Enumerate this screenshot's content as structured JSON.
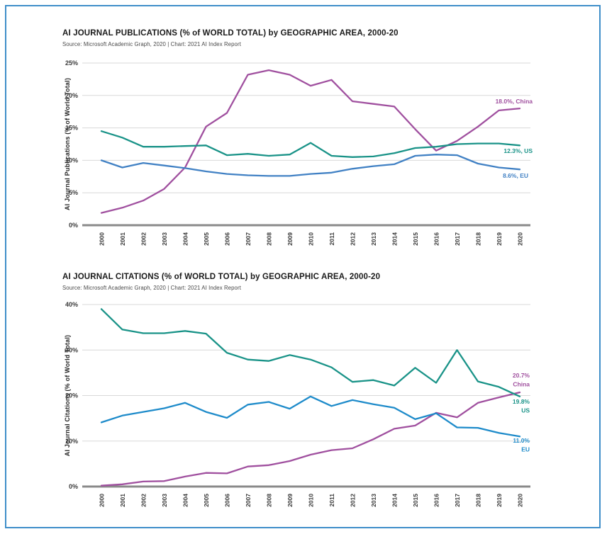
{
  "page": {
    "border_color": "#3f8ec9",
    "background": "#ffffff"
  },
  "chart_data": [
    {
      "type": "line",
      "title": "AI JOURNAL PUBLICATIONS (% of WORLD TOTAL) by GEOGRAPHIC AREA, 2000-20",
      "source": "Source: Microsoft Academic Graph, 2020 | Chart: 2021 AI Index Report",
      "xlabel": "",
      "ylabel": "AI Journal Publications (% of World Total)",
      "x": [
        2000,
        2001,
        2002,
        2003,
        2004,
        2005,
        2006,
        2007,
        2008,
        2009,
        2010,
        2011,
        2012,
        2013,
        2014,
        2015,
        2016,
        2017,
        2018,
        2019,
        2020
      ],
      "ylim": [
        0,
        25
      ],
      "yticks": [
        0,
        5,
        10,
        15,
        20,
        25
      ],
      "grid": true,
      "legend_position": "end-of-line-labels",
      "series": [
        {
          "name": "China",
          "color": "#a0509f",
          "end_label": "18.0%, China",
          "values": [
            1.9,
            2.7,
            3.8,
            5.6,
            8.9,
            15.2,
            17.3,
            23.2,
            23.9,
            23.2,
            21.5,
            22.4,
            19.1,
            18.7,
            18.3,
            14.8,
            11.5,
            13.0,
            15.2,
            17.7,
            18.0
          ]
        },
        {
          "name": "US",
          "color": "#1a9388",
          "end_label": "12.3%, US",
          "values": [
            14.5,
            13.5,
            12.1,
            12.1,
            12.2,
            12.3,
            10.8,
            11.0,
            10.7,
            10.9,
            12.7,
            10.7,
            10.5,
            10.6,
            11.1,
            11.9,
            12.1,
            12.5,
            12.6,
            12.6,
            12.3
          ]
        },
        {
          "name": "EU",
          "color": "#4181c4",
          "end_label": "8.6%, EU",
          "values": [
            10.0,
            8.9,
            9.6,
            9.2,
            8.8,
            8.3,
            7.9,
            7.7,
            7.6,
            7.6,
            7.9,
            8.1,
            8.7,
            9.1,
            9.4,
            10.7,
            10.9,
            10.8,
            9.5,
            8.9,
            8.6
          ]
        }
      ]
    },
    {
      "type": "line",
      "title": "AI JOURNAL CITATIONS (% of WORLD TOTAL) by GEOGRAPHIC AREA, 2000-20",
      "source": "Source: Microsoft Academic Graph, 2020 | Chart: 2021 AI Index Report",
      "xlabel": "",
      "ylabel": "AI Journal Citations (% of World Total)",
      "x": [
        2000,
        2001,
        2002,
        2003,
        2004,
        2005,
        2006,
        2007,
        2008,
        2009,
        2010,
        2011,
        2012,
        2013,
        2014,
        2015,
        2016,
        2017,
        2018,
        2019,
        2020
      ],
      "ylim": [
        0,
        40
      ],
      "yticks": [
        0,
        10,
        20,
        30,
        40
      ],
      "grid": true,
      "legend_position": "end-of-line-labels",
      "series": [
        {
          "name": "China",
          "color": "#a0509f",
          "end_label": "20.7%\nChina",
          "values": [
            0.2,
            0.5,
            1.1,
            1.2,
            2.2,
            3.0,
            2.9,
            4.4,
            4.7,
            5.6,
            7.0,
            8.0,
            8.4,
            10.4,
            12.7,
            13.4,
            16.2,
            15.2,
            18.4,
            19.6,
            20.7
          ]
        },
        {
          "name": "US",
          "color": "#1a9388",
          "end_label": "19.8%\nUS",
          "values": [
            39.0,
            34.5,
            33.7,
            33.7,
            34.2,
            33.6,
            29.4,
            27.9,
            27.6,
            28.9,
            27.9,
            26.2,
            23.0,
            23.4,
            22.2,
            26.1,
            22.8,
            30.0,
            23.1,
            21.9,
            19.8
          ]
        },
        {
          "name": "EU",
          "color": "#1e8bca",
          "end_label": "11.0%\nEU",
          "values": [
            14.1,
            15.6,
            16.4,
            17.2,
            18.4,
            16.4,
            15.1,
            18.0,
            18.6,
            17.1,
            19.8,
            17.7,
            19.0,
            18.1,
            17.3,
            14.8,
            16.1,
            13.0,
            12.9,
            11.8,
            11.0
          ]
        }
      ]
    }
  ]
}
